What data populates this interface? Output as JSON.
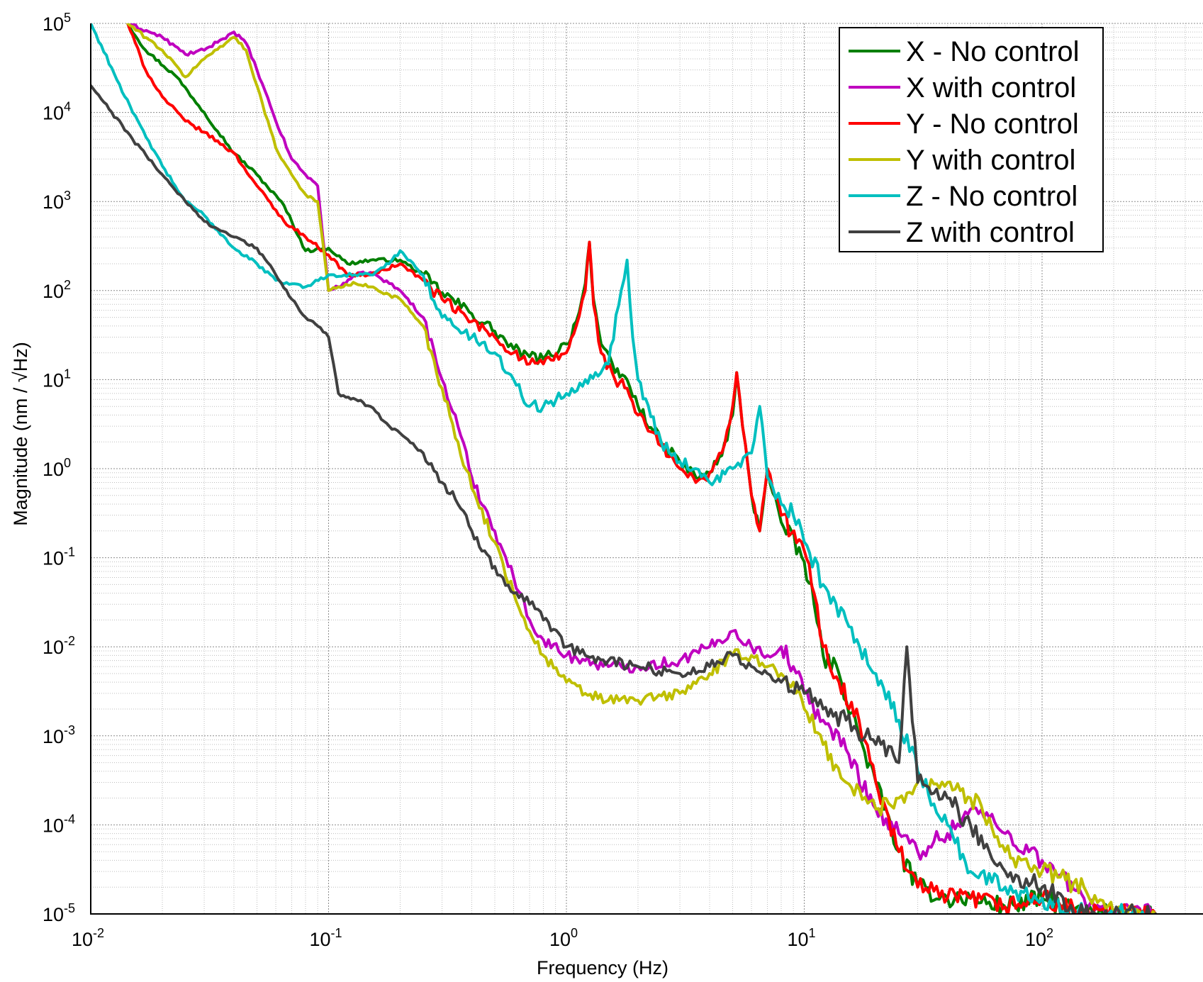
{
  "chart_data": {
    "type": "line",
    "title": "",
    "xlabel": "Frequency (Hz)",
    "ylabel": "Magnitude (nm / √Hz)",
    "xscale": "log",
    "yscale": "log",
    "xlim": [
      0.01,
      300
    ],
    "ylim": [
      1e-05,
      100000.0
    ],
    "grid": "major and minor",
    "legend_position": "top-right",
    "x_ticks": [
      {
        "base": "10",
        "exp": "-2"
      },
      {
        "base": "10",
        "exp": "-1"
      },
      {
        "base": "10",
        "exp": "0"
      },
      {
        "base": "10",
        "exp": "1"
      },
      {
        "base": "10",
        "exp": "2"
      }
    ],
    "y_ticks": [
      {
        "base": "10",
        "exp": "-5"
      },
      {
        "base": "10",
        "exp": "-4"
      },
      {
        "base": "10",
        "exp": "-3"
      },
      {
        "base": "10",
        "exp": "-2"
      },
      {
        "base": "10",
        "exp": "-1"
      },
      {
        "base": "10",
        "exp": "0"
      },
      {
        "base": "10",
        "exp": "1"
      },
      {
        "base": "10",
        "exp": "2"
      },
      {
        "base": "10",
        "exp": "3"
      },
      {
        "base": "10",
        "exp": "4"
      },
      {
        "base": "10",
        "exp": "5"
      }
    ],
    "series": [
      {
        "name": "X - No control",
        "color": "#007f00",
        "x": [
          0.0143,
          0.017,
          0.023,
          0.03,
          0.04,
          0.05,
          0.065,
          0.08,
          0.1,
          0.12,
          0.15,
          0.2,
          0.25,
          0.3,
          0.4,
          0.5,
          0.6,
          0.7,
          0.8,
          1.0,
          1.1,
          1.2,
          1.25,
          1.3,
          1.4,
          1.6,
          1.8,
          2.0,
          2.5,
          3.0,
          3.5,
          4.0,
          4.5,
          5.0,
          5.2,
          5.5,
          6.0,
          6.5,
          7.0,
          8.0,
          10.0,
          11.0,
          12.0,
          14.0,
          17.0,
          20.0,
          25.0,
          30.0,
          40.0,
          50.0,
          70.0,
          100.0,
          150.0,
          200.0,
          300.0
        ],
        "y": [
          100000,
          50000,
          25000,
          10000,
          3500,
          2000,
          900,
          280,
          300,
          200,
          220,
          220,
          150,
          95,
          55,
          35,
          22,
          18,
          17,
          25,
          45,
          120,
          350,
          80,
          25,
          12,
          10,
          5,
          2,
          1.2,
          0.8,
          0.9,
          1.4,
          4,
          12,
          3,
          0.5,
          0.2,
          1.0,
          0.25,
          0.09,
          0.03,
          0.008,
          0.005,
          0.001,
          0.0003,
          5e-05,
          2e-05,
          1.5e-05,
          1.5e-05,
          1.2e-05,
          1.5e-05,
          1e-05,
          1e-05,
          1e-05
        ]
      },
      {
        "name": "X with control",
        "color": "#bf00bf",
        "x": [
          0.0143,
          0.02,
          0.025,
          0.03,
          0.035,
          0.04,
          0.045,
          0.05,
          0.06,
          0.07,
          0.08,
          0.09,
          0.1,
          0.11,
          0.13,
          0.15,
          0.18,
          0.2,
          0.25,
          0.3,
          0.35,
          0.4,
          0.5,
          0.6,
          0.7,
          0.8,
          1.0,
          1.2,
          1.5,
          2.0,
          3.0,
          4.0,
          5.0,
          6.0,
          7.0,
          8.0,
          9.0,
          10.0,
          12.0,
          15.0,
          20.0,
          25.0,
          30.0,
          40.0,
          50.0,
          60.0,
          70.0,
          100.0,
          150.0,
          200.0,
          300.0
        ],
        "y": [
          100000,
          70000,
          45000,
          50000,
          65000,
          80000,
          60000,
          30000,
          8000,
          3000,
          2000,
          1500,
          100,
          110,
          150,
          160,
          120,
          100,
          50,
          10,
          3,
          0.8,
          0.2,
          0.06,
          0.02,
          0.012,
          0.008,
          0.007,
          0.006,
          0.006,
          0.007,
          0.01,
          0.015,
          0.01,
          0.008,
          0.01,
          0.006,
          0.003,
          0.0015,
          0.0007,
          0.00015,
          8e-05,
          5e-05,
          8e-05,
          0.00015,
          0.00012,
          8e-05,
          4e-05,
          1.5e-05,
          1e-05,
          1e-05
        ]
      },
      {
        "name": "Y - No control",
        "color": "#ff0000",
        "x": [
          0.0143,
          0.017,
          0.02,
          0.025,
          0.03,
          0.04,
          0.05,
          0.065,
          0.08,
          0.1,
          0.12,
          0.15,
          0.2,
          0.25,
          0.3,
          0.4,
          0.5,
          0.6,
          0.7,
          0.8,
          1.0,
          1.1,
          1.2,
          1.25,
          1.3,
          1.4,
          1.6,
          1.8,
          2.0,
          2.5,
          3.0,
          3.5,
          4.0,
          4.5,
          5.0,
          5.2,
          5.5,
          6.0,
          6.5,
          7.0,
          8.0,
          10.0,
          11.0,
          12.0,
          14.0,
          17.0,
          20.0,
          25.0,
          30.0,
          40.0,
          50.0,
          70.0,
          100.0,
          150.0,
          200.0,
          300.0
        ],
        "y": [
          100000,
          30000,
          15000,
          8000,
          6000,
          3500,
          1500,
          600,
          400,
          250,
          150,
          150,
          200,
          130,
          80,
          45,
          30,
          20,
          15,
          15,
          20,
          40,
          100,
          350,
          70,
          20,
          10,
          8,
          4,
          1.8,
          1.0,
          0.7,
          0.9,
          1.5,
          5,
          12,
          3,
          0.5,
          0.2,
          1.0,
          0.3,
          0.12,
          0.04,
          0.01,
          0.004,
          0.0015,
          0.0003,
          5e-05,
          2e-05,
          1.5e-05,
          1.5e-05,
          1.2e-05,
          1.5e-05,
          1e-05,
          1e-05,
          1e-05
        ]
      },
      {
        "name": "Y with control",
        "color": "#bfbf00",
        "x": [
          0.0143,
          0.02,
          0.025,
          0.03,
          0.035,
          0.04,
          0.045,
          0.05,
          0.06,
          0.07,
          0.08,
          0.09,
          0.1,
          0.11,
          0.13,
          0.15,
          0.18,
          0.2,
          0.25,
          0.3,
          0.35,
          0.4,
          0.5,
          0.6,
          0.7,
          0.8,
          1.0,
          1.2,
          1.5,
          2.0,
          3.0,
          4.0,
          5.0,
          6.0,
          7.0,
          8.0,
          9.0,
          10.0,
          12.0,
          15.0,
          20.0,
          25.0,
          30.0,
          40.0,
          50.0,
          60.0,
          70.0,
          100.0,
          150.0,
          200.0,
          300.0
        ],
        "y": [
          100000,
          50000,
          25000,
          40000,
          55000,
          70000,
          50000,
          20000,
          4000,
          2000,
          1200,
          1000,
          100,
          110,
          120,
          110,
          90,
          80,
          40,
          8,
          2,
          0.6,
          0.15,
          0.04,
          0.015,
          0.008,
          0.004,
          0.003,
          0.0025,
          0.0025,
          0.003,
          0.005,
          0.008,
          0.008,
          0.006,
          0.005,
          0.004,
          0.002,
          0.0008,
          0.0003,
          0.00015,
          0.0002,
          0.0003,
          0.0003,
          0.0002,
          0.00012,
          5e-05,
          3e-05,
          2e-05,
          1e-05,
          1e-05
        ]
      },
      {
        "name": "Z - No control",
        "color": "#00bfbf",
        "x": [
          0.01,
          0.015,
          0.02,
          0.025,
          0.03,
          0.04,
          0.05,
          0.06,
          0.08,
          0.1,
          0.15,
          0.18,
          0.2,
          0.25,
          0.3,
          0.4,
          0.5,
          0.6,
          0.7,
          0.8,
          1.0,
          1.2,
          1.5,
          1.7,
          1.8,
          1.9,
          2.0,
          2.5,
          3.0,
          3.5,
          4.0,
          5.0,
          6.0,
          6.5,
          7.0,
          8.0,
          9.0,
          10.0,
          12.0,
          15.0,
          20.0,
          25.0,
          30.0,
          40.0,
          50.0,
          70.0,
          100.0,
          150.0,
          200.0,
          300.0
        ],
        "y": [
          100000,
          10000,
          2500,
          1000,
          700,
          300,
          200,
          130,
          110,
          150,
          150,
          200,
          280,
          150,
          50,
          30,
          20,
          10,
          5,
          5,
          7,
          10,
          15,
          100,
          220,
          30,
          10,
          2,
          1.2,
          1.0,
          0.7,
          1.0,
          1.5,
          5,
          0.8,
          0.4,
          0.3,
          0.15,
          0.05,
          0.02,
          0.005,
          0.0015,
          0.0004,
          0.0001,
          3e-05,
          2e-05,
          1.5e-05,
          1e-05,
          1e-05,
          1e-05
        ]
      },
      {
        "name": "Z with control",
        "color": "#404040",
        "x": [
          0.01,
          0.015,
          0.02,
          0.025,
          0.03,
          0.04,
          0.05,
          0.06,
          0.07,
          0.08,
          0.09,
          0.1,
          0.11,
          0.13,
          0.15,
          0.18,
          0.2,
          0.25,
          0.3,
          0.35,
          0.4,
          0.5,
          0.6,
          0.7,
          0.8,
          1.0,
          1.2,
          1.5,
          2.0,
          3.0,
          4.0,
          5.0,
          6.0,
          7.0,
          8.0,
          10.0,
          12.0,
          15.0,
          20.0,
          25.0,
          27.0,
          30.0,
          40.0,
          50.0,
          60.0,
          70.0,
          100.0,
          150.0,
          200.0,
          300.0
        ],
        "y": [
          20000,
          5000,
          2000,
          1000,
          600,
          400,
          300,
          150,
          80,
          50,
          40,
          30,
          7,
          6,
          5,
          3,
          2.5,
          1.5,
          0.7,
          0.4,
          0.2,
          0.08,
          0.04,
          0.03,
          0.02,
          0.01,
          0.008,
          0.007,
          0.006,
          0.005,
          0.006,
          0.008,
          0.006,
          0.005,
          0.004,
          0.003,
          0.002,
          0.0015,
          0.0008,
          0.0005,
          0.01,
          0.0003,
          0.0002,
          0.0001,
          5e-05,
          3e-05,
          2e-05,
          1e-05,
          1e-05,
          1e-05
        ]
      }
    ]
  }
}
